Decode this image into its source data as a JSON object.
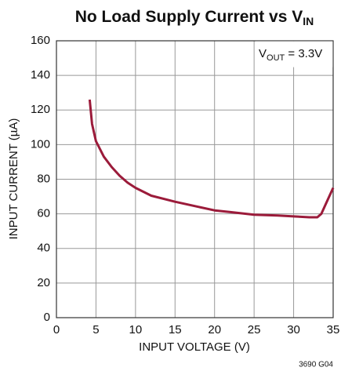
{
  "chart_data": {
    "type": "line",
    "title": {
      "text": "No Load Supply Current vs V",
      "subscript": "IN"
    },
    "annotation": {
      "text": "V",
      "subscript": "OUT",
      "suffix": " = 3.3V"
    },
    "xlabel": "INPUT VOLTAGE (V)",
    "ylabel": "INPUT CURRENT (µA)",
    "footnote": "3690 G04",
    "x": [
      4.2,
      4.5,
      5,
      6,
      7,
      8,
      9,
      10,
      12,
      15,
      18,
      20,
      22,
      25,
      28,
      30,
      32,
      33,
      33.5,
      34,
      35
    ],
    "values": [
      126,
      112,
      102,
      93,
      87,
      82,
      78,
      75,
      70.5,
      67,
      64,
      62,
      61,
      59.5,
      59,
      58.5,
      58,
      58,
      60,
      65,
      75
    ],
    "color": "#9b1b3a",
    "xlim": [
      0,
      35
    ],
    "xticks": [
      0,
      5,
      10,
      15,
      20,
      25,
      30,
      35
    ],
    "ylim": [
      0,
      160
    ],
    "yticks": [
      0,
      20,
      40,
      60,
      80,
      100,
      120,
      140,
      160
    ],
    "grid": true
  }
}
